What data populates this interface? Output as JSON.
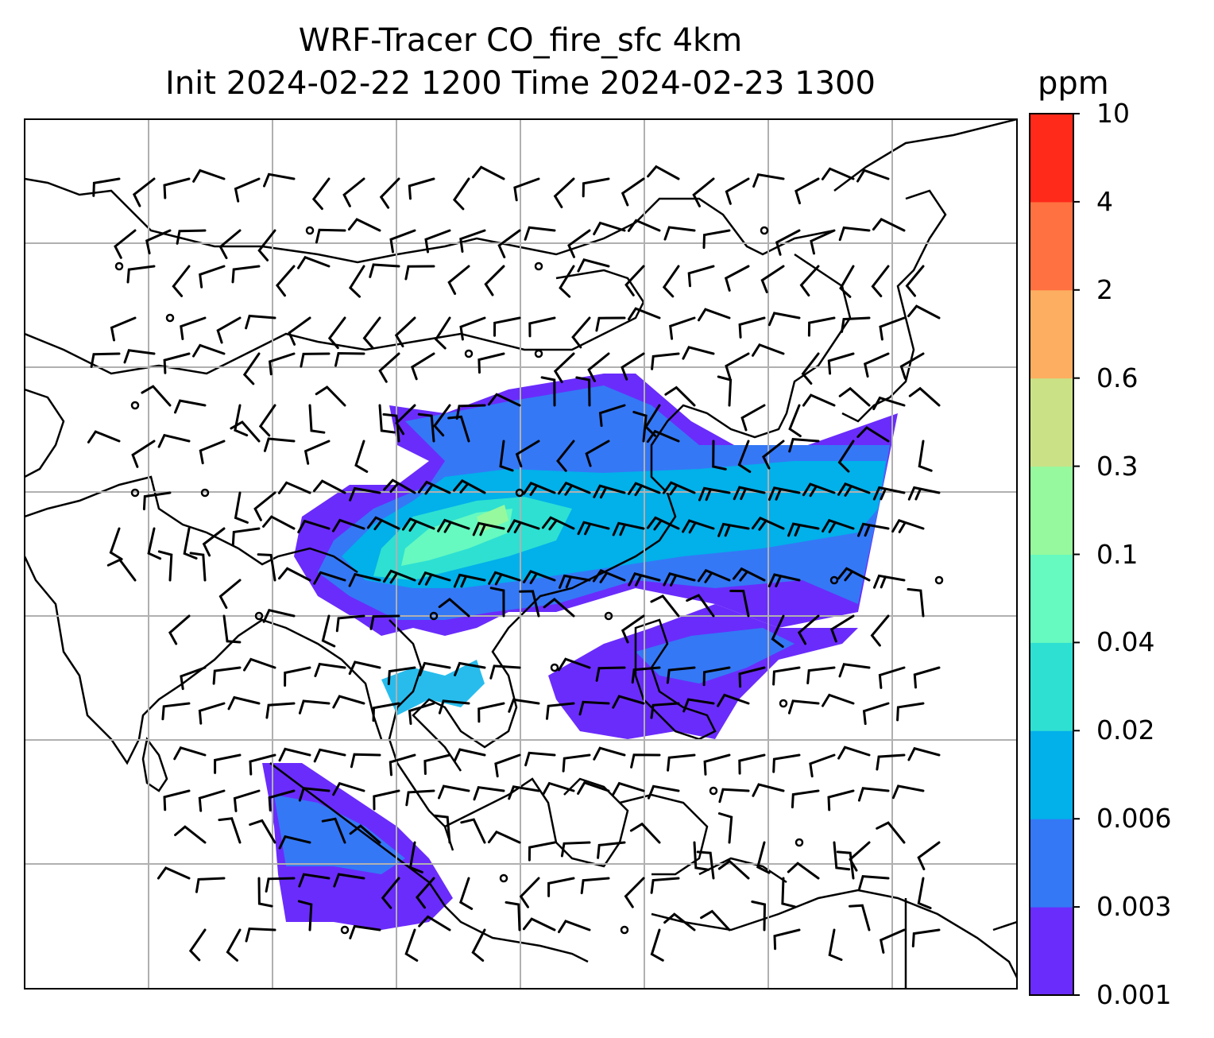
{
  "title": {
    "line1": "WRF-Tracer CO_fire_sfc 4km",
    "line2": "Init 2024-02-22 1200 Time 2024-02-23 1300"
  },
  "colorbar": {
    "units": "ppm",
    "levels": [
      "0.001",
      "0.003",
      "0.006",
      "0.02",
      "0.04",
      "0.1",
      "0.3",
      "0.6",
      "2",
      "4",
      "10"
    ],
    "colors": [
      "#6a2cfb",
      "#3478f6",
      "#02b0ea",
      "#2de0d2",
      "#66f9c0",
      "#96f99e",
      "#cbe186",
      "#fdae61",
      "#ff7140",
      "#ff2a1a"
    ]
  },
  "map": {
    "background": "#ffffff",
    "gridline_color": "#b0b0b0",
    "coastline_color": "#000000",
    "barb_color": "#000000"
  }
}
